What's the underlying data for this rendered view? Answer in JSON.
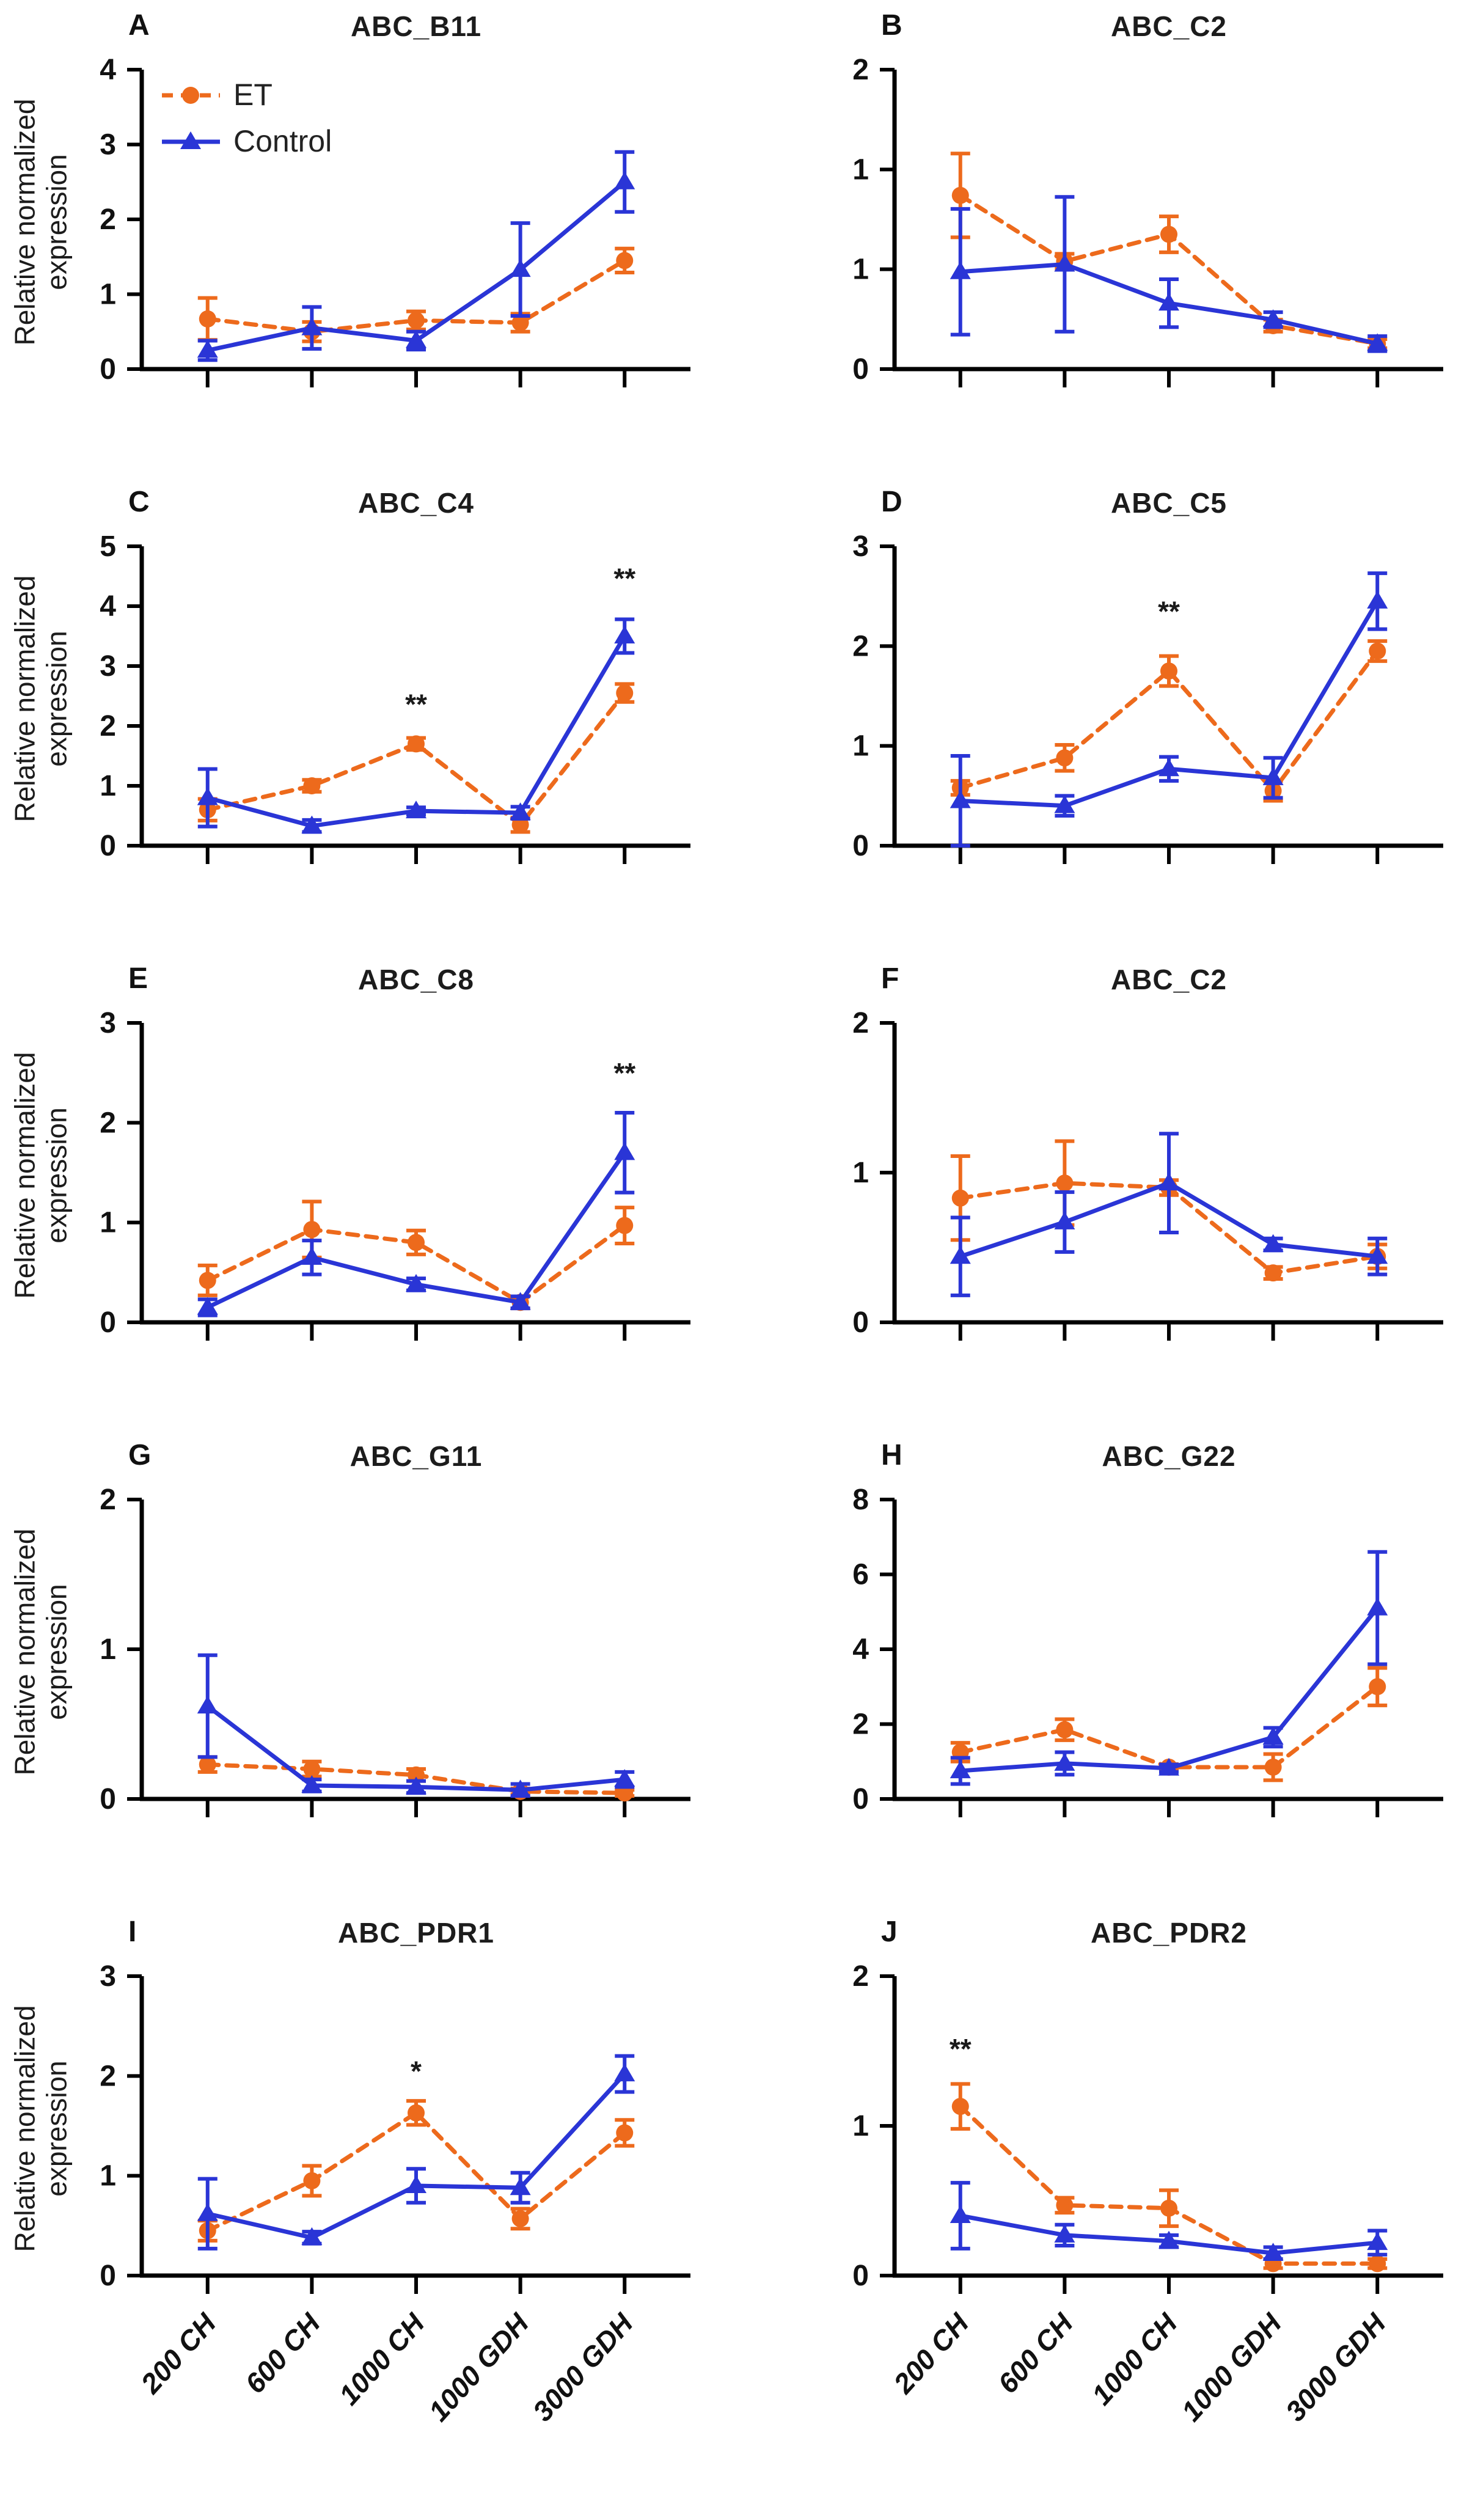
{
  "figure": {
    "y_axis_label": "Relative normalized expression",
    "y_axis_label_lines": [
      "Relative normalized",
      "expression"
    ]
  },
  "legend": {
    "et_label": "ET",
    "control_label": "Control"
  },
  "colors": {
    "et": "#ED6A1C",
    "control": "#2A35D6",
    "axis": "#000000",
    "text": "#1a1a1a"
  },
  "categories": [
    "200 CH",
    "600 CH",
    "1000 CH",
    "1000 GDH",
    "3000 GDH"
  ],
  "chart_data": [
    {
      "letter": "A",
      "title": "ABC_B11",
      "type": "line",
      "ymax": 4,
      "yticks": [
        "0",
        "1",
        "2",
        "3",
        "4"
      ],
      "show_legend": true,
      "show_xlabels": false,
      "show_ylabel": true,
      "series": [
        {
          "name": "ET",
          "values": [
            0.67,
            0.5,
            0.65,
            0.62,
            1.45
          ],
          "errors": [
            0.28,
            0.13,
            0.12,
            0.12,
            0.16
          ]
        },
        {
          "name": "Control",
          "values": [
            0.25,
            0.55,
            0.38,
            1.33,
            2.5
          ],
          "errors": [
            0.13,
            0.28,
            0.12,
            0.62,
            0.4
          ]
        }
      ],
      "annotations": []
    },
    {
      "letter": "B",
      "title": "ABC_C2",
      "type": "line",
      "ymax": 2,
      "yticks": [
        "0",
        "1",
        "1",
        "2"
      ],
      "show_legend": false,
      "show_xlabels": false,
      "show_ylabel": false,
      "series": [
        {
          "name": "ET",
          "values": [
            1.16,
            0.72,
            0.9,
            0.29,
            0.17
          ],
          "errors": [
            0.28,
            0.05,
            0.12,
            0.04,
            0.03
          ]
        },
        {
          "name": "Control",
          "values": [
            0.65,
            0.7,
            0.44,
            0.33,
            0.17
          ],
          "errors": [
            0.42,
            0.45,
            0.16,
            0.05,
            0.05
          ]
        }
      ],
      "annotations": []
    },
    {
      "letter": "C",
      "title": "ABC_C4",
      "type": "line",
      "ymax": 5,
      "yticks": [
        "0",
        "1",
        "2",
        "3",
        "4",
        "5"
      ],
      "show_legend": false,
      "show_xlabels": false,
      "show_ylabel": true,
      "series": [
        {
          "name": "ET",
          "values": [
            0.6,
            1.0,
            1.7,
            0.35,
            2.55
          ],
          "errors": [
            0.18,
            0.1,
            0.1,
            0.12,
            0.15
          ]
        },
        {
          "name": "Control",
          "values": [
            0.8,
            0.33,
            0.58,
            0.55,
            3.5
          ],
          "errors": [
            0.48,
            0.1,
            0.06,
            0.1,
            0.28
          ]
        }
      ],
      "annotations": [
        {
          "x_index": 2,
          "y": 2.2,
          "text": "**"
        },
        {
          "x_index": 4,
          "y": 4.3,
          "text": "**"
        }
      ]
    },
    {
      "letter": "D",
      "title": "ABC_C5",
      "type": "line",
      "ymax": 3,
      "yticks": [
        "0",
        "1",
        "2",
        "3"
      ],
      "show_legend": false,
      "show_xlabels": false,
      "show_ylabel": false,
      "series": [
        {
          "name": "ET",
          "values": [
            0.58,
            0.88,
            1.75,
            0.55,
            1.95
          ],
          "errors": [
            0.07,
            0.13,
            0.15,
            0.1,
            0.1
          ]
        },
        {
          "name": "Control",
          "values": [
            0.45,
            0.4,
            0.77,
            0.68,
            2.45
          ],
          "errors": [
            0.45,
            0.1,
            0.12,
            0.2,
            0.28
          ]
        }
      ],
      "annotations": [
        {
          "x_index": 2,
          "y": 2.25,
          "text": "**"
        }
      ]
    },
    {
      "letter": "E",
      "title": "ABC_C8",
      "type": "line",
      "ymax": 3,
      "yticks": [
        "0",
        "1",
        "2",
        "3"
      ],
      "show_legend": false,
      "show_xlabels": false,
      "show_ylabel": true,
      "series": [
        {
          "name": "ET",
          "values": [
            0.42,
            0.93,
            0.8,
            0.2,
            0.97
          ],
          "errors": [
            0.15,
            0.28,
            0.12,
            0.06,
            0.18
          ]
        },
        {
          "name": "Control",
          "values": [
            0.15,
            0.65,
            0.38,
            0.2,
            1.7
          ],
          "errors": [
            0.08,
            0.17,
            0.06,
            0.06,
            0.4
          ]
        }
      ],
      "annotations": [
        {
          "x_index": 4,
          "y": 2.4,
          "text": "**"
        }
      ]
    },
    {
      "letter": "F",
      "title": "ABC_C2",
      "type": "line",
      "ymax": 2,
      "yticks": [
        "0",
        "1",
        "2"
      ],
      "show_legend": false,
      "show_xlabels": false,
      "show_ylabel": false,
      "series": [
        {
          "name": "ET",
          "values": [
            0.83,
            0.93,
            0.9,
            0.33,
            0.44
          ],
          "errors": [
            0.28,
            0.28,
            0.05,
            0.04,
            0.08
          ]
        },
        {
          "name": "Control",
          "values": [
            0.44,
            0.67,
            0.93,
            0.52,
            0.44
          ],
          "errors": [
            0.26,
            0.2,
            0.33,
            0.04,
            0.12
          ]
        }
      ],
      "annotations": []
    },
    {
      "letter": "G",
      "title": "ABC_G11",
      "type": "line",
      "ymax": 2,
      "yticks": [
        "0",
        "1",
        "2"
      ],
      "show_legend": false,
      "show_xlabels": false,
      "show_ylabel": true,
      "series": [
        {
          "name": "ET",
          "values": [
            0.23,
            0.2,
            0.16,
            0.05,
            0.04
          ],
          "errors": [
            0.05,
            0.05,
            0.04,
            0.02,
            0.02
          ]
        },
        {
          "name": "Control",
          "values": [
            0.62,
            0.09,
            0.08,
            0.06,
            0.13
          ],
          "errors": [
            0.34,
            0.04,
            0.04,
            0.04,
            0.05
          ]
        }
      ],
      "annotations": []
    },
    {
      "letter": "H",
      "title": "ABC_G22",
      "type": "line",
      "ymax": 8,
      "yticks": [
        "0",
        "2",
        "4",
        "6",
        "8"
      ],
      "show_legend": false,
      "show_xlabels": false,
      "show_ylabel": false,
      "series": [
        {
          "name": "ET",
          "values": [
            1.25,
            1.85,
            0.85,
            0.85,
            3.0
          ],
          "errors": [
            0.25,
            0.28,
            0.08,
            0.35,
            0.5
          ]
        },
        {
          "name": "Control",
          "values": [
            0.75,
            0.95,
            0.82,
            1.65,
            5.1
          ],
          "errors": [
            0.35,
            0.3,
            0.1,
            0.25,
            1.5
          ]
        }
      ],
      "annotations": []
    },
    {
      "letter": "I",
      "title": "ABC_PDR1",
      "type": "line",
      "ymax": 3,
      "yticks": [
        "0",
        "1",
        "2",
        "3"
      ],
      "show_legend": false,
      "show_xlabels": true,
      "show_ylabel": true,
      "series": [
        {
          "name": "ET",
          "values": [
            0.45,
            0.95,
            1.63,
            0.57,
            1.43
          ],
          "errors": [
            0.1,
            0.15,
            0.12,
            0.1,
            0.13
          ]
        },
        {
          "name": "Control",
          "values": [
            0.62,
            0.38,
            0.9,
            0.88,
            2.02
          ],
          "errors": [
            0.35,
            0.06,
            0.17,
            0.15,
            0.18
          ]
        }
      ],
      "annotations": [
        {
          "x_index": 2,
          "y": 1.95,
          "text": "*"
        }
      ]
    },
    {
      "letter": "J",
      "title": "ABC_PDR2",
      "type": "line",
      "ymax": 2,
      "yticks": [
        "0",
        "1",
        "2"
      ],
      "show_legend": false,
      "show_xlabels": true,
      "show_ylabel": false,
      "series": [
        {
          "name": "ET",
          "values": [
            1.13,
            0.47,
            0.45,
            0.08,
            0.08
          ],
          "errors": [
            0.15,
            0.05,
            0.12,
            0.03,
            0.03
          ]
        },
        {
          "name": "Control",
          "values": [
            0.4,
            0.27,
            0.23,
            0.15,
            0.22
          ],
          "errors": [
            0.22,
            0.07,
            0.04,
            0.04,
            0.08
          ]
        }
      ],
      "annotations": [
        {
          "x_index": 0,
          "y": 1.45,
          "text": "**"
        }
      ]
    }
  ]
}
